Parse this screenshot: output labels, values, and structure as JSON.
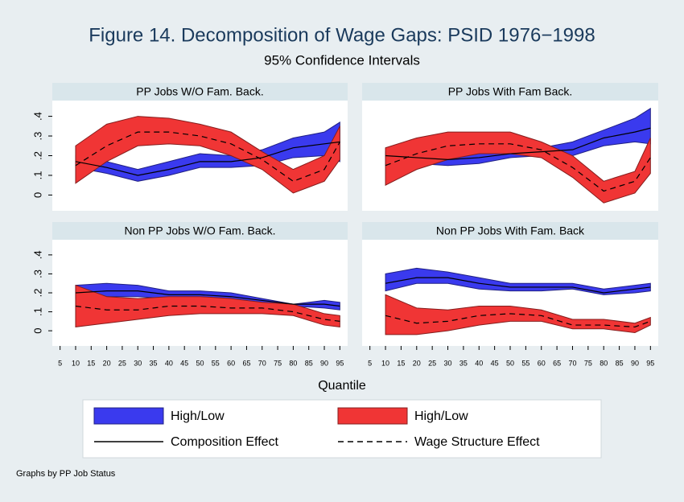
{
  "chart_data": {
    "type": "line",
    "title": "Figure 14. Decomposition of Wage Gaps: PSID 1976−1998",
    "subtitle": "95% Confidence Intervals",
    "xlabel": "Quantile",
    "note": "Graphs by PP Job Status",
    "x": [
      10,
      20,
      30,
      40,
      50,
      60,
      70,
      80,
      90,
      95
    ],
    "xlim": [
      2.5,
      97.5
    ],
    "xticks": [
      5,
      10,
      15,
      20,
      25,
      30,
      35,
      40,
      45,
      50,
      55,
      60,
      65,
      70,
      75,
      80,
      85,
      90,
      95
    ],
    "ylim": [
      -0.08,
      0.48
    ],
    "yticks": [
      0,
      {
        "value": 0.1,
        "label": ".1"
      },
      {
        "value": 0.2,
        "label": ".2"
      },
      {
        "value": 0.3,
        "label": ".3"
      },
      {
        "value": 0.4,
        "label": ".4"
      }
    ],
    "legend": [
      {
        "name": "High/Low",
        "color": "#3a3aee",
        "style": "band"
      },
      {
        "name": "High/Low",
        "color": "#f03535",
        "style": "band"
      },
      {
        "name": "Composition Effect",
        "color": "#000000",
        "style": "solid"
      },
      {
        "name": "Wage Structure Effect",
        "color": "#000000",
        "style": "dash"
      }
    ],
    "panels": [
      {
        "title": "PP Jobs W/O Fam. Back.",
        "series": [
          {
            "upper": [
              0.2,
              0.17,
              0.13,
              0.17,
              0.21,
              0.2,
              0.23,
              0.29,
              0.32,
              0.37
            ],
            "lower": [
              0.14,
              0.11,
              0.07,
              0.1,
              0.14,
              0.14,
              0.15,
              0.19,
              0.2,
              0.17
            ]
          },
          {
            "upper": [
              0.25,
              0.36,
              0.4,
              0.39,
              0.36,
              0.32,
              0.22,
              0.13,
              0.2,
              0.35
            ],
            "lower": [
              0.06,
              0.17,
              0.25,
              0.26,
              0.25,
              0.2,
              0.13,
              0.01,
              0.07,
              0.18
            ]
          },
          {
            "values": [
              0.17,
              0.14,
              0.1,
              0.13,
              0.17,
              0.17,
              0.19,
              0.24,
              0.26,
              0.27
            ]
          },
          {
            "values": [
              0.15,
              0.25,
              0.32,
              0.32,
              0.3,
              0.26,
              0.18,
              0.07,
              0.13,
              0.27
            ]
          }
        ]
      },
      {
        "title": "PP Jobs With Fam Back.",
        "series": [
          {
            "upper": [
              0.22,
              0.21,
              0.21,
              0.22,
              0.23,
              0.24,
              0.27,
              0.33,
              0.39,
              0.44
            ],
            "lower": [
              0.15,
              0.16,
              0.15,
              0.16,
              0.19,
              0.2,
              0.2,
              0.25,
              0.27,
              0.26
            ]
          },
          {
            "upper": [
              0.24,
              0.29,
              0.32,
              0.32,
              0.32,
              0.27,
              0.2,
              0.07,
              0.12,
              0.29
            ],
            "lower": [
              0.05,
              0.13,
              0.18,
              0.21,
              0.21,
              0.19,
              0.09,
              -0.04,
              0.01,
              0.11
            ]
          },
          {
            "values": [
              0.2,
              0.19,
              0.18,
              0.19,
              0.21,
              0.22,
              0.23,
              0.29,
              0.32,
              0.34
            ]
          },
          {
            "values": [
              0.15,
              0.21,
              0.25,
              0.26,
              0.26,
              0.23,
              0.14,
              0.02,
              0.07,
              0.19
            ]
          }
        ]
      },
      {
        "title": "Non PP Jobs W/O Fam. Back.",
        "series": [
          {
            "upper": [
              0.24,
              0.25,
              0.24,
              0.21,
              0.21,
              0.2,
              0.17,
              0.14,
              0.16,
              0.15
            ],
            "lower": [
              0.17,
              0.18,
              0.18,
              0.17,
              0.17,
              0.16,
              0.14,
              0.13,
              0.12,
              0.11
            ]
          },
          {
            "upper": [
              0.24,
              0.18,
              0.17,
              0.18,
              0.18,
              0.17,
              0.15,
              0.14,
              0.09,
              0.08
            ],
            "lower": [
              0.02,
              0.04,
              0.06,
              0.08,
              0.09,
              0.09,
              0.09,
              0.08,
              0.03,
              0.02
            ]
          },
          {
            "values": [
              0.2,
              0.21,
              0.21,
              0.19,
              0.19,
              0.18,
              0.16,
              0.14,
              0.14,
              0.13
            ]
          },
          {
            "values": [
              0.13,
              0.11,
              0.11,
              0.13,
              0.13,
              0.12,
              0.12,
              0.1,
              0.06,
              0.05
            ]
          }
        ]
      },
      {
        "title": "Non PP Jobs With Fam. Back",
        "series": [
          {
            "upper": [
              0.3,
              0.33,
              0.31,
              0.28,
              0.25,
              0.25,
              0.25,
              0.22,
              0.24,
              0.25
            ],
            "lower": [
              0.21,
              0.25,
              0.25,
              0.22,
              0.21,
              0.21,
              0.22,
              0.19,
              0.2,
              0.21
            ]
          },
          {
            "upper": [
              0.19,
              0.12,
              0.11,
              0.13,
              0.13,
              0.11,
              0.06,
              0.06,
              0.04,
              0.07
            ],
            "lower": [
              -0.02,
              -0.02,
              0.0,
              0.03,
              0.05,
              0.05,
              0.01,
              0.01,
              -0.01,
              0.03
            ]
          },
          {
            "values": [
              0.25,
              0.28,
              0.28,
              0.25,
              0.23,
              0.23,
              0.23,
              0.2,
              0.22,
              0.23
            ]
          },
          {
            "values": [
              0.08,
              0.04,
              0.05,
              0.08,
              0.09,
              0.08,
              0.03,
              0.03,
              0.02,
              0.05
            ]
          }
        ]
      }
    ]
  }
}
